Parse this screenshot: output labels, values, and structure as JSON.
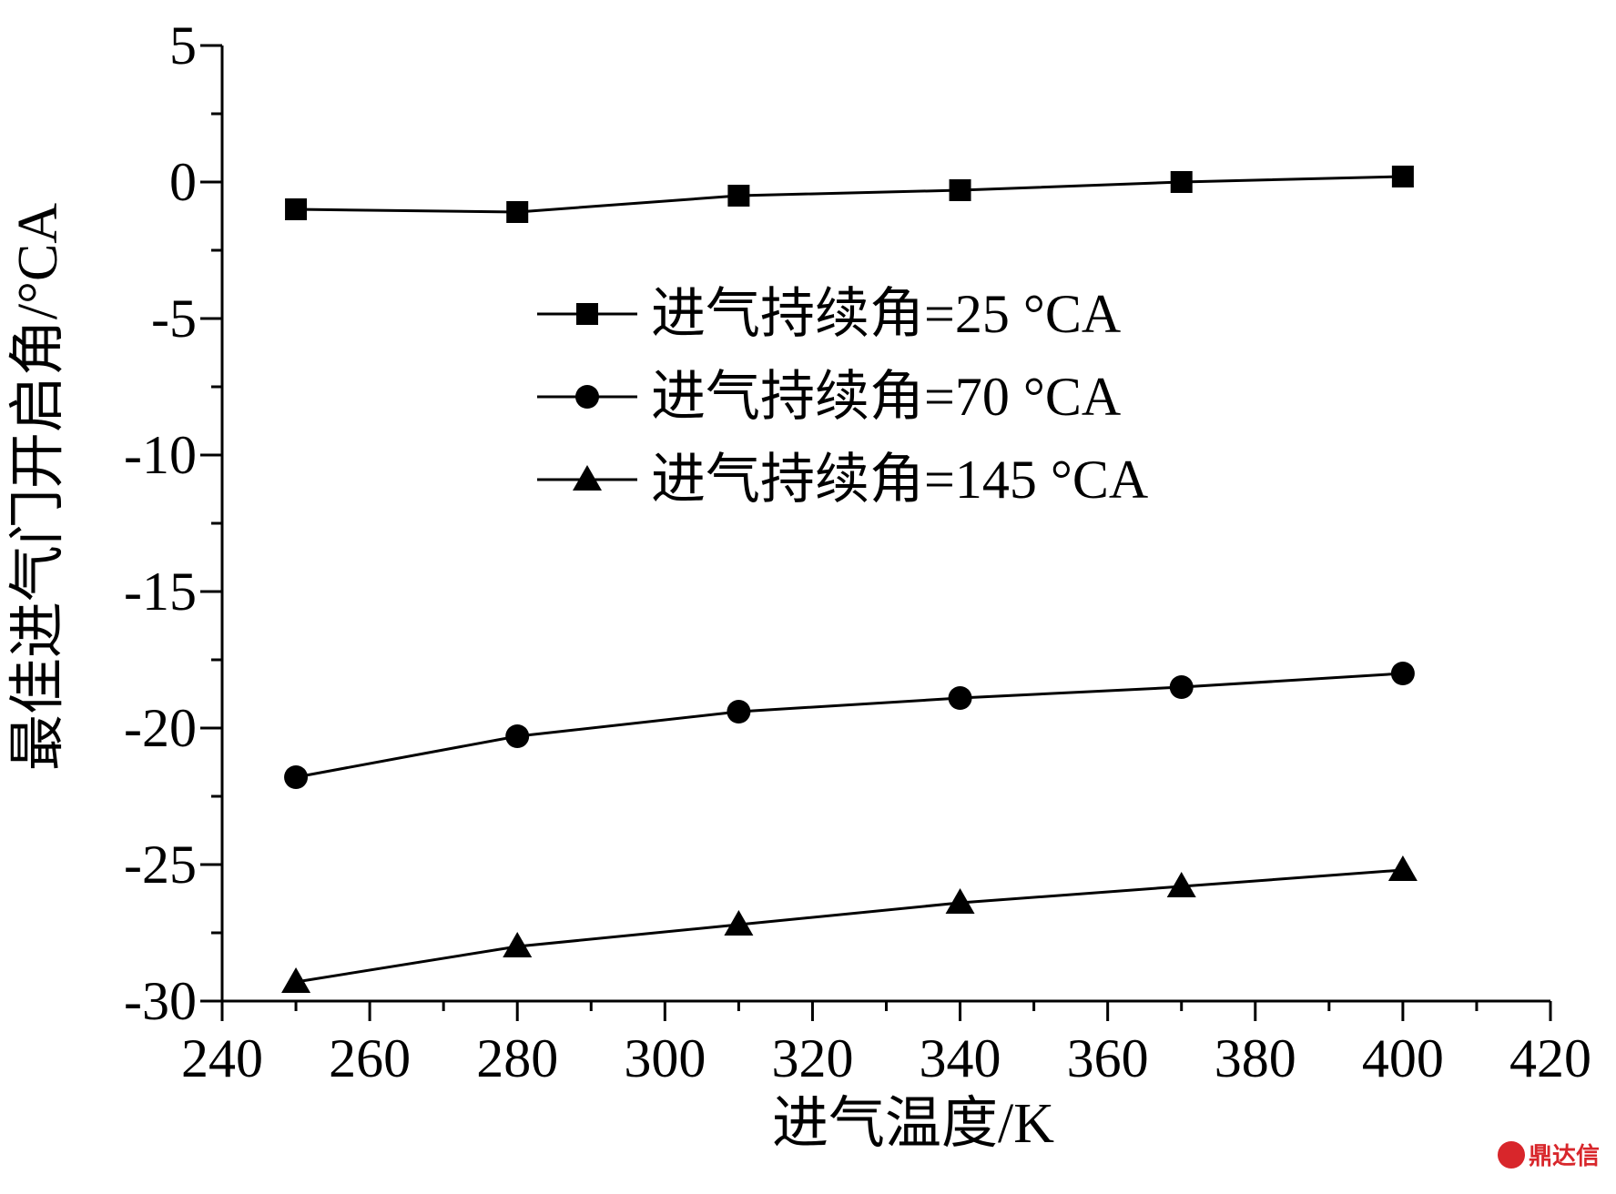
{
  "chart_data": {
    "type": "line",
    "title": "",
    "xlabel": "进气温度/K",
    "ylabel": "最佳进气门开启角/°CA",
    "xlim": [
      240,
      420
    ],
    "ylim": [
      -30,
      5
    ],
    "xticks": [
      "240",
      "260",
      "280",
      "300",
      "320",
      "340",
      "360",
      "380",
      "400",
      "420"
    ],
    "yticks": [
      "5",
      "0",
      "-5",
      "-10",
      "-15",
      "-20",
      "-25",
      "-30"
    ],
    "grid": false,
    "legend_position": "center-right",
    "x": [
      250,
      280,
      310,
      340,
      370,
      400
    ],
    "series": [
      {
        "name": "进气持续角=25 °CA",
        "marker": "square",
        "values": [
          -1.0,
          -1.1,
          -0.5,
          -0.3,
          0.0,
          0.2
        ]
      },
      {
        "name": "进气持续角=70 °CA",
        "marker": "circle",
        "values": [
          -21.8,
          -20.3,
          -19.4,
          -18.9,
          -18.5,
          -18.0
        ]
      },
      {
        "name": "进气持续角=145 °CA",
        "marker": "triangle",
        "values": [
          -29.3,
          -28.0,
          -27.2,
          -26.4,
          -25.8,
          -25.2
        ]
      }
    ],
    "colors": {
      "line": "#000000",
      "watermark": "#d8262b"
    }
  },
  "watermark": {
    "text": "鼎达信"
  }
}
